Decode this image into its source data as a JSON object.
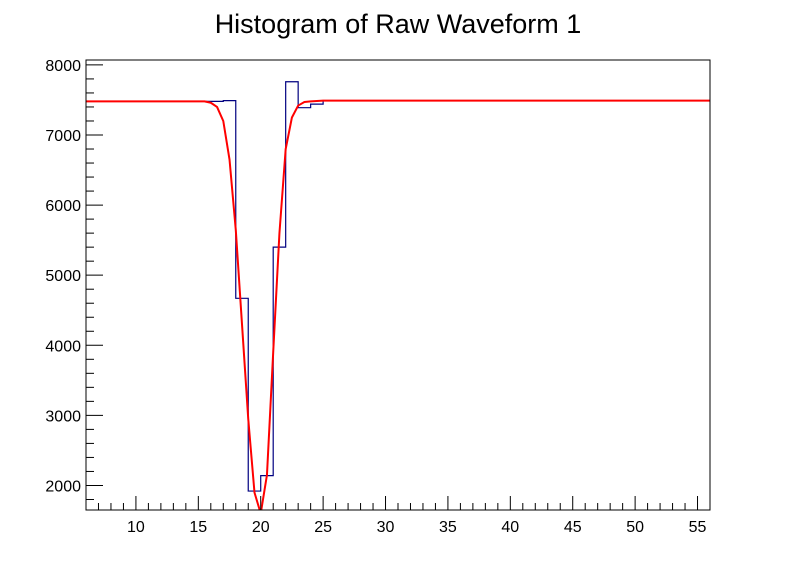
{
  "chart_data": {
    "type": "line",
    "title": "Histogram of Raw Waveform 1",
    "xlabel": "",
    "ylabel": "",
    "xlim": [
      6,
      56
    ],
    "ylim": [
      1650,
      8070
    ],
    "x_ticks": [
      10,
      15,
      20,
      25,
      30,
      35,
      40,
      45,
      50,
      55
    ],
    "y_ticks": [
      2000,
      3000,
      4000,
      5000,
      6000,
      7000,
      8000
    ],
    "grid": false,
    "series": [
      {
        "style": "step",
        "color": "#000080",
        "x": [
          6,
          7,
          8,
          9,
          10,
          11,
          12,
          13,
          14,
          15,
          16,
          17,
          18,
          19,
          20,
          21,
          22,
          23,
          24,
          25,
          26,
          27,
          28,
          29,
          30,
          31,
          32,
          33,
          34,
          35,
          36,
          37,
          38,
          39,
          40,
          41,
          42,
          43,
          44,
          45,
          46,
          47,
          48,
          49,
          50,
          51,
          52,
          53,
          54,
          55
        ],
        "y": [
          7480,
          7480,
          7480,
          7480,
          7480,
          7480,
          7480,
          7480,
          7480,
          7480,
          7480,
          7490,
          4670,
          1920,
          2140,
          5400,
          7760,
          7390,
          7440,
          7490,
          7490,
          7490,
          7490,
          7490,
          7490,
          7490,
          7490,
          7490,
          7490,
          7490,
          7490,
          7490,
          7490,
          7490,
          7490,
          7490,
          7490,
          7490,
          7490,
          7490,
          7490,
          7490,
          7490,
          7490,
          7490,
          7490,
          7490,
          7490,
          7490,
          7490
        ]
      },
      {
        "style": "smooth",
        "color": "#ff0000",
        "x": [
          6,
          10,
          14,
          15.5,
          16,
          16.5,
          17,
          17.5,
          18,
          18.5,
          19,
          19.5,
          20,
          20.5,
          21,
          21.5,
          22,
          22.5,
          23,
          23.5,
          24,
          25,
          30,
          40,
          50,
          56
        ],
        "y": [
          7480,
          7480,
          7480,
          7480,
          7460,
          7400,
          7200,
          6650,
          5650,
          4300,
          2950,
          1900,
          1600,
          2150,
          3900,
          5600,
          6800,
          7250,
          7420,
          7470,
          7480,
          7490,
          7490,
          7490,
          7490,
          7490
        ]
      }
    ]
  }
}
